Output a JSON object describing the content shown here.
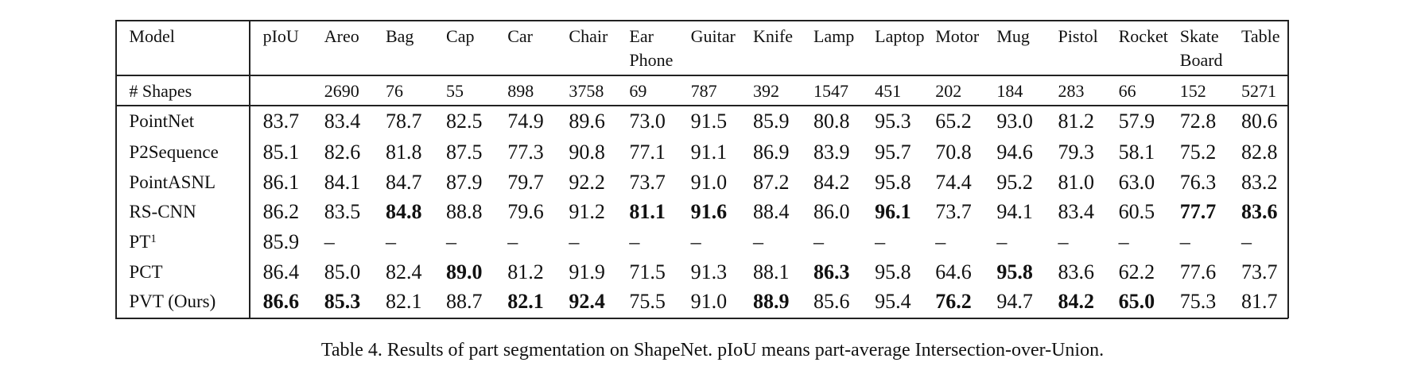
{
  "table": {
    "header": [
      "Model",
      "pIoU",
      "Areo",
      "Bag",
      "Cap",
      "Car",
      "Chair",
      "Ear\nPhone",
      "Guitar",
      "Knife",
      "Lamp",
      "Laptop",
      "Motor",
      "Mug",
      "Pistol",
      "Rocket",
      "Skate\nBoard",
      "Table"
    ],
    "shapes": [
      "# Shapes",
      null,
      "2690",
      "76",
      "55",
      "898",
      "3758",
      "69",
      "787",
      "392",
      "1547",
      "451",
      "202",
      "184",
      "283",
      "66",
      "152",
      "5271"
    ],
    "rows": [
      {
        "model": "PointNet",
        "cells": [
          {
            "text": "83.7"
          },
          {
            "text": "83.4"
          },
          {
            "text": "78.7"
          },
          {
            "text": "82.5"
          },
          {
            "text": "74.9"
          },
          {
            "text": "89.6"
          },
          {
            "text": "73.0"
          },
          {
            "text": "91.5"
          },
          {
            "text": "85.9"
          },
          {
            "text": "80.8"
          },
          {
            "text": "95.3"
          },
          {
            "text": "65.2"
          },
          {
            "text": "93.0"
          },
          {
            "text": "81.2"
          },
          {
            "text": "57.9"
          },
          {
            "text": "72.8"
          },
          {
            "text": "80.6"
          }
        ]
      },
      {
        "model": "P2Sequence",
        "cells": [
          {
            "text": "85.1"
          },
          {
            "text": "82.6"
          },
          {
            "text": "81.8"
          },
          {
            "text": "87.5"
          },
          {
            "text": "77.3"
          },
          {
            "text": "90.8"
          },
          {
            "text": "77.1"
          },
          {
            "text": "91.1"
          },
          {
            "text": "86.9"
          },
          {
            "text": "83.9"
          },
          {
            "text": "95.7"
          },
          {
            "text": "70.8"
          },
          {
            "text": "94.6"
          },
          {
            "text": "79.3"
          },
          {
            "text": "58.1"
          },
          {
            "text": "75.2"
          },
          {
            "text": "82.8"
          }
        ]
      },
      {
        "model": "PointASNL",
        "cells": [
          {
            "text": "86.1"
          },
          {
            "text": "84.1"
          },
          {
            "text": "84.7"
          },
          {
            "text": "87.9"
          },
          {
            "text": "79.7"
          },
          {
            "text": "92.2"
          },
          {
            "text": "73.7"
          },
          {
            "text": "91.0"
          },
          {
            "text": "87.2"
          },
          {
            "text": "84.2"
          },
          {
            "text": "95.8"
          },
          {
            "text": "74.4"
          },
          {
            "text": "95.2"
          },
          {
            "text": "81.0"
          },
          {
            "text": "63.0"
          },
          {
            "text": "76.3"
          },
          {
            "text": "83.2"
          }
        ]
      },
      {
        "model": "RS-CNN",
        "cells": [
          {
            "text": "86.2"
          },
          {
            "text": "83.5"
          },
          {
            "text": "84.8",
            "bold": true
          },
          {
            "text": "88.8"
          },
          {
            "text": "79.6"
          },
          {
            "text": "91.2"
          },
          {
            "text": "81.1",
            "bold": true
          },
          {
            "text": "91.6",
            "bold": true
          },
          {
            "text": "88.4"
          },
          {
            "text": "86.0"
          },
          {
            "text": "96.1",
            "bold": true
          },
          {
            "text": "73.7"
          },
          {
            "text": "94.1"
          },
          {
            "text": "83.4"
          },
          {
            "text": "60.5"
          },
          {
            "text": "77.7",
            "bold": true
          },
          {
            "text": "83.6",
            "bold": true
          }
        ]
      },
      {
        "model": "PT",
        "sup": "1",
        "cells": [
          {
            "text": "85.9"
          },
          {
            "text": "–"
          },
          {
            "text": "–"
          },
          {
            "text": "–"
          },
          {
            "text": "–"
          },
          {
            "text": "–"
          },
          {
            "text": "–"
          },
          {
            "text": "–"
          },
          {
            "text": "–"
          },
          {
            "text": "–"
          },
          {
            "text": "–"
          },
          {
            "text": "–"
          },
          {
            "text": "–"
          },
          {
            "text": "–"
          },
          {
            "text": "–"
          },
          {
            "text": "–"
          },
          {
            "text": "–"
          }
        ]
      },
      {
        "model": "PCT",
        "cells": [
          {
            "text": "86.4"
          },
          {
            "text": "85.0"
          },
          {
            "text": "82.4"
          },
          {
            "text": "89.0",
            "bold": true
          },
          {
            "text": "81.2"
          },
          {
            "text": "91.9"
          },
          {
            "text": "71.5"
          },
          {
            "text": "91.3"
          },
          {
            "text": "88.1"
          },
          {
            "text": "86.3",
            "bold": true
          },
          {
            "text": "95.8"
          },
          {
            "text": "64.6"
          },
          {
            "text": "95.8",
            "bold": true
          },
          {
            "text": "83.6"
          },
          {
            "text": "62.2"
          },
          {
            "text": "77.6"
          },
          {
            "text": "73.7"
          }
        ]
      },
      {
        "model": "PVT (Ours)",
        "cells": [
          {
            "text": "86.6",
            "bold": true
          },
          {
            "text": "85.3",
            "bold": true
          },
          {
            "text": "82.1"
          },
          {
            "text": "88.7"
          },
          {
            "text": "82.1",
            "bold": true
          },
          {
            "text": "92.4",
            "bold": true
          },
          {
            "text": "75.5"
          },
          {
            "text": "91.0"
          },
          {
            "text": "88.9",
            "bold": true
          },
          {
            "text": "85.6"
          },
          {
            "text": "95.4"
          },
          {
            "text": "76.2",
            "bold": true
          },
          {
            "text": "94.7"
          },
          {
            "text": "84.2",
            "bold": true
          },
          {
            "text": "65.0",
            "bold": true
          },
          {
            "text": "75.3"
          },
          {
            "text": "81.7"
          }
        ]
      }
    ],
    "caption": "Table 4. Results of part segmentation on ShapeNet. pIoU means part-average Intersection-over-Union."
  }
}
